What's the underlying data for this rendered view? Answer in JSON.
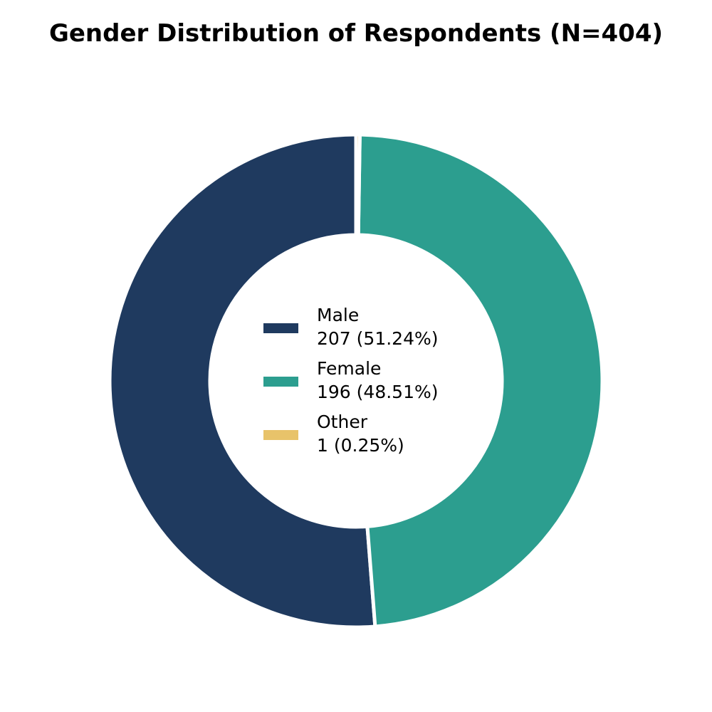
{
  "chart_data": {
    "type": "pie",
    "variant": "donut",
    "title": "Gender Distribution of Respondents (N=404)",
    "slices": [
      {
        "label": "Male",
        "value": 207,
        "percent": 51.24,
        "color": "#1f3a5f",
        "legend_value": "207 (51.24%)"
      },
      {
        "label": "Female",
        "value": 196,
        "percent": 48.51,
        "color": "#2c9e8f",
        "legend_value": "196 (48.51%)"
      },
      {
        "label": "Other",
        "value": 1,
        "percent": 0.25,
        "color": "#e8c36a",
        "legend_value": "1 (0.25%)"
      }
    ],
    "start_angle": "top",
    "direction": "counterclockwise",
    "legend_position": "center"
  }
}
